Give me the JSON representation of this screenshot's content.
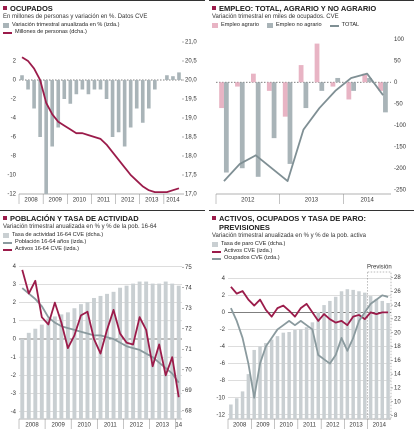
{
  "chart_data": [
    {
      "type": "combo",
      "title": "OCUPADOS",
      "subtitle": "En millones de personas y variación en %. Datos CVE",
      "categories": [
        "2008",
        null,
        null,
        null,
        "2009",
        null,
        null,
        null,
        "2010",
        null,
        null,
        null,
        "2011",
        null,
        null,
        null,
        "2012",
        null,
        null,
        null,
        "2013",
        null,
        null,
        null,
        "2014",
        null,
        null
      ],
      "series": [
        {
          "name": "Variación trimestral anualizada en % (izda.)",
          "kind": "bar",
          "color": "#a9b4b8",
          "values": [
            0.5,
            -1,
            -3,
            -6,
            -12,
            -7,
            -5,
            -2,
            -2.5,
            -1.5,
            -1,
            -1.5,
            -1,
            -1,
            -2,
            -6,
            -5.5,
            -7,
            -5,
            -3,
            -4.5,
            -3,
            -1,
            0,
            0.5,
            0.4,
            0.8
          ]
        },
        {
          "name": "Millones de personas (dcha.)",
          "kind": "line",
          "axis": "y2",
          "color": "#9b1b4a",
          "values": [
            20.6,
            20.5,
            20.3,
            20.0,
            19.4,
            19.1,
            18.9,
            18.8,
            18.7,
            18.6,
            18.6,
            18.55,
            18.5,
            18.45,
            18.3,
            18.1,
            17.9,
            17.7,
            17.5,
            17.35,
            17.2,
            17.1,
            17.05,
            17.05,
            17.05,
            17.1,
            17.15
          ]
        }
      ],
      "ylim": [
        -12,
        4
      ],
      "yticks": [
        -12,
        -10,
        -8,
        -6,
        -4,
        -2,
        0,
        2
      ],
      "y2lim": [
        17,
        21
      ],
      "y2ticks": [
        {
          "value": 17,
          "label": "17,0"
        },
        {
          "value": 17.5,
          "label": "17,5"
        },
        {
          "value": 18,
          "label": "18,0"
        },
        {
          "value": 18.5,
          "label": "18,5"
        },
        {
          "value": 19,
          "label": "19,0"
        },
        {
          "value": 19.5,
          "label": "19,5"
        },
        {
          "value": 20,
          "label": "20,0"
        },
        {
          "value": 20.5,
          "label": "20,5"
        },
        {
          "value": 21,
          "label": "21,0"
        }
      ],
      "grid": false
    },
    {
      "type": "combo",
      "title": "EMPLEO: TOTAL, AGRARIO Y NO AGRARIO",
      "subtitle": "Variación trimestral en miles de ocupados. CVE",
      "categories": [
        "2012",
        null,
        null,
        null,
        "2013",
        null,
        null,
        null,
        "2014",
        null,
        null
      ],
      "series": [
        {
          "name": "Empleo agrario",
          "kind": "bar",
          "color": "#e8b4c4",
          "values": [
            -60,
            -10,
            20,
            -20,
            -80,
            40,
            90,
            -10,
            -40,
            20,
            -20
          ]
        },
        {
          "name": "Empleo no agrario",
          "kind": "bar",
          "color": "#a9b4b8",
          "values": [
            -210,
            -200,
            -220,
            -130,
            -190,
            -60,
            -20,
            10,
            -20,
            10,
            -70
          ]
        },
        {
          "name": "TOTAL",
          "kind": "line",
          "color": "#7f8f94",
          "values": [
            -230,
            -190,
            -170,
            -200,
            -230,
            -110,
            -60,
            -20,
            10,
            20,
            -30
          ]
        }
      ],
      "ylim": [
        -260,
        110
      ],
      "yticks": [
        -250,
        -200,
        -150,
        -100,
        -50,
        0,
        50,
        100
      ],
      "grid": false
    },
    {
      "type": "combo",
      "title": "POBLACIÓN Y TASA DE ACTIVIDAD",
      "subtitle": "Variación trimestral anualizada en % y % de la pob. 16-64",
      "categories": [
        "2008",
        null,
        null,
        null,
        "2009",
        null,
        null,
        null,
        "2010",
        null,
        null,
        null,
        "2011",
        null,
        null,
        null,
        "2012",
        null,
        null,
        null,
        "2013",
        null,
        null,
        null,
        "14"
      ],
      "series": [
        {
          "name": "Tasa de actividad 16-64 CVE (dcha.)",
          "kind": "bar",
          "axis": "y2",
          "color": "#c9cfd2",
          "values": [
            71.5,
            71.8,
            72,
            72.2,
            72.5,
            72.6,
            72.7,
            72.8,
            73,
            73.2,
            73.3,
            73.5,
            73.6,
            73.7,
            73.8,
            74,
            74.1,
            74.2,
            74.3,
            74.3,
            74.2,
            74.2,
            74.3,
            74.2,
            74.1
          ]
        },
        {
          "name": "Población 16-64 años (izda.)",
          "kind": "line",
          "color": "#8a9a9e",
          "values": [
            2.8,
            2.5,
            2.2,
            1.8,
            1.2,
            0.9,
            0.7,
            0.6,
            0.5,
            0.4,
            0.3,
            0.2,
            0.2,
            0.1,
            0,
            -0.2,
            -0.4,
            -0.5,
            -0.6,
            -0.8,
            -1,
            -1.3,
            -1.6,
            -1.9,
            -2.4
          ]
        },
        {
          "name": "Activos 16-64 CVE (izda.)",
          "kind": "line",
          "color": "#9b1b4a",
          "values": [
            3.8,
            2.5,
            3.2,
            1.2,
            0.8,
            2.0,
            0.9,
            -0.5,
            0.2,
            1.3,
            1.5,
            0,
            -0.8,
            0.5,
            1.6,
            0.3,
            -0.2,
            -0.3,
            1.2,
            0.5,
            -1.5,
            -0.3,
            -2.0,
            -1.0,
            -3.2
          ]
        }
      ],
      "ylim": [
        -4.4,
        4.4
      ],
      "yticks": [
        -4,
        -3,
        -2,
        -1,
        0,
        1,
        2,
        3,
        4
      ],
      "y2lim": [
        67.6,
        75.4
      ],
      "y2ticks": [
        68,
        69,
        70,
        71,
        72,
        73,
        74,
        75
      ],
      "grid": true
    },
    {
      "type": "combo",
      "title": "ACTIVOS, OCUPADOS Y TASA DE PARO: PREVISIONES",
      "subtitle": "Variación trimestral anualizada en % y % de la pob. activa",
      "annotation": "Previsión",
      "categories": [
        "2008",
        null,
        null,
        null,
        "2009",
        null,
        null,
        null,
        "2010",
        null,
        null,
        null,
        "2011",
        null,
        null,
        null,
        "2012",
        null,
        null,
        null,
        "2013",
        null,
        null,
        null,
        "2014",
        null,
        null,
        null
      ],
      "series": [
        {
          "name": "Tasa de paro CVE (dcha.)",
          "kind": "bar",
          "axis": "y2",
          "color": "#c9cfd2",
          "values": [
            9.6,
            10.5,
            11.5,
            14,
            17.5,
            18,
            18.5,
            19,
            19.5,
            20,
            20.1,
            20.4,
            20.5,
            20.8,
            21.5,
            23,
            24,
            24.6,
            25.2,
            26,
            26.3,
            26.2,
            26,
            25.8,
            25.3,
            24.9,
            24.6,
            24.3
          ]
        },
        {
          "name": "Activos CVE (izda.)",
          "kind": "line",
          "color": "#9b1b4a",
          "values": [
            3,
            2.2,
            2.5,
            1.5,
            0.8,
            1.5,
            0.3,
            -0.5,
            0.5,
            0.8,
            0.2,
            -0.5,
            0.5,
            1,
            0,
            -1,
            -0.2,
            -0.8,
            -1.2,
            -1,
            -1.5,
            -0.5,
            -0.3,
            -0.8,
            0,
            -0.2,
            0,
            0
          ]
        },
        {
          "name": "Ocupados CVE (izda.)",
          "kind": "line",
          "color": "#8a9a9e",
          "values": [
            0.5,
            -1,
            -3,
            -6,
            -10,
            -6,
            -4,
            -3,
            -2,
            -1.5,
            -1,
            -1.5,
            -1,
            -1.5,
            -2,
            -5,
            -5.5,
            -6,
            -5,
            -3,
            -4.5,
            -3,
            -1,
            0,
            1,
            1.5,
            2,
            1.8
          ]
        }
      ],
      "ylim": [
        -12.5,
        4.5
      ],
      "yticks": [
        -12,
        -10,
        -8,
        -6,
        -4,
        -2,
        0,
        2,
        4
      ],
      "y2lim": [
        7.5,
        28.5
      ],
      "y2ticks": [
        8,
        10,
        12,
        14,
        16,
        18,
        20,
        22,
        24,
        26,
        28
      ],
      "grid": true
    }
  ]
}
